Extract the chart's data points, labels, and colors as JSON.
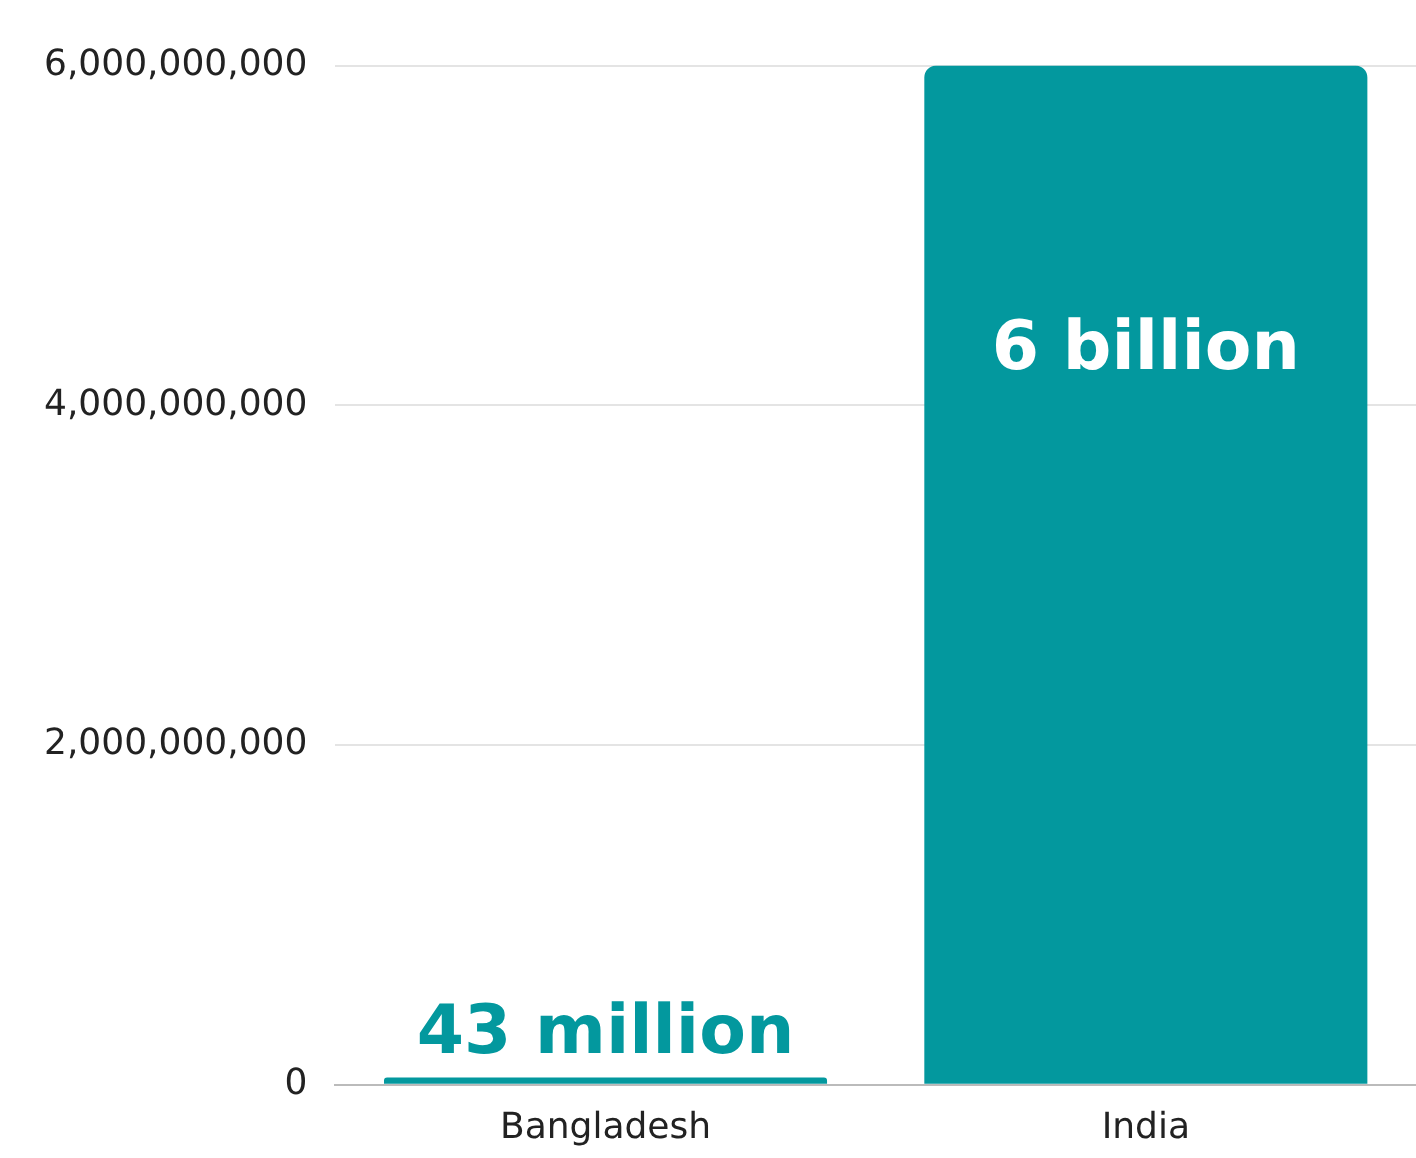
{
  "chart_data": {
    "type": "bar",
    "categories": [
      "Bangladesh",
      "India"
    ],
    "values": [
      43000000,
      6000000000
    ],
    "value_labels": [
      "43 million",
      "6 billion"
    ],
    "color": "#03989e",
    "ylim": [
      0,
      6000000000
    ],
    "yticks": [
      0,
      {
        "value": 2000000000,
        "label": "2,000,000,000"
      },
      {
        "value": 4000000000,
        "label": "4,000,000,000"
      },
      {
        "value": 6000000000,
        "label": "6,000,000,000"
      }
    ],
    "grid": "y",
    "legend": false
  }
}
